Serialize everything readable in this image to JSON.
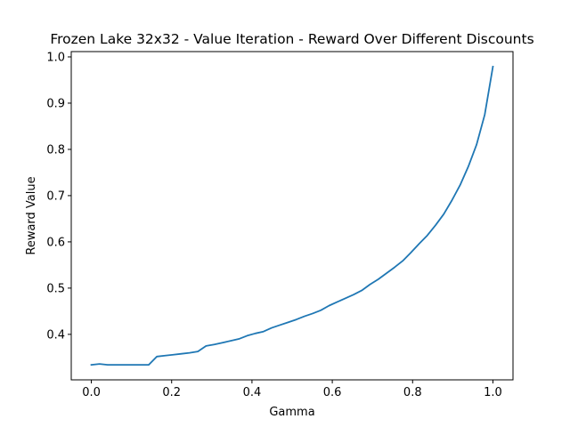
{
  "chart_data": {
    "type": "line",
    "title": "Frozen Lake 32x32 - Value Iteration - Reward Over Different Discounts",
    "xlabel": "Gamma",
    "ylabel": "Reward Value",
    "xlim": [
      -0.05,
      1.05
    ],
    "ylim": [
      0.3016,
      1.0115
    ],
    "xticks": [
      0.0,
      0.2,
      0.4,
      0.6,
      0.8,
      1.0
    ],
    "xtick_labels": [
      "0.0",
      "0.2",
      "0.4",
      "0.6",
      "0.8",
      "1.0"
    ],
    "yticks": [
      0.4,
      0.5,
      0.6,
      0.7,
      0.8,
      0.9,
      1.0
    ],
    "ytick_labels": [
      "0.4",
      "0.5",
      "0.6",
      "0.7",
      "0.8",
      "0.9",
      "1.0"
    ],
    "grid": false,
    "legend": "none",
    "series": [
      {
        "color": "#1f77b4",
        "x": [
          0.0,
          0.0204,
          0.0408,
          0.0612,
          0.0816,
          0.102,
          0.1224,
          0.1429,
          0.1633,
          0.1837,
          0.2041,
          0.2245,
          0.2449,
          0.2653,
          0.2857,
          0.3061,
          0.3265,
          0.3469,
          0.3673,
          0.3878,
          0.4082,
          0.4286,
          0.449,
          0.4694,
          0.4898,
          0.5102,
          0.5306,
          0.551,
          0.5714,
          0.5918,
          0.6122,
          0.6327,
          0.6531,
          0.6735,
          0.6939,
          0.7143,
          0.7347,
          0.7551,
          0.7755,
          0.7959,
          0.8163,
          0.8367,
          0.8571,
          0.8776,
          0.898,
          0.9184,
          0.9388,
          0.9592,
          0.9796,
          1.0
        ],
        "values": [
          0.334,
          0.336,
          0.334,
          0.334,
          0.334,
          0.334,
          0.334,
          0.334,
          0.352,
          0.354,
          0.356,
          0.358,
          0.36,
          0.363,
          0.375,
          0.378,
          0.382,
          0.386,
          0.39,
          0.397,
          0.402,
          0.406,
          0.414,
          0.42,
          0.426,
          0.432,
          0.439,
          0.445,
          0.452,
          0.462,
          0.47,
          0.478,
          0.486,
          0.495,
          0.508,
          0.519,
          0.532,
          0.545,
          0.559,
          0.577,
          0.596,
          0.614,
          0.636,
          0.66,
          0.69,
          0.723,
          0.763,
          0.81,
          0.875,
          0.979
        ]
      }
    ]
  }
}
